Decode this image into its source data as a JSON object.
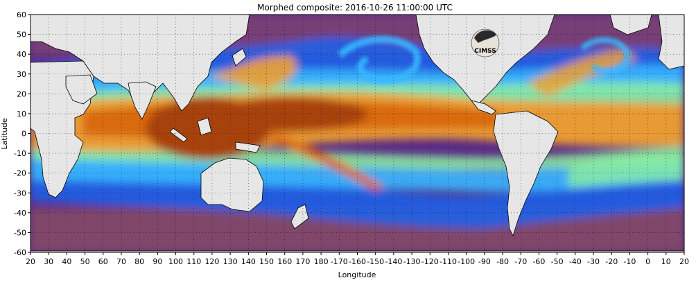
{
  "map": {
    "title": "Morphed composite: 2016-10-26 11:00:00 UTC",
    "xlabel": "Longitude",
    "ylabel": "Latitude",
    "x_ticks": [
      "20",
      "30",
      "40",
      "50",
      "60",
      "70",
      "80",
      "90",
      "100",
      "110",
      "120",
      "130",
      "140",
      "150",
      "160",
      "170",
      "180",
      "-170",
      "-160",
      "-150",
      "-140",
      "-130",
      "-120",
      "-110",
      "-100",
      "-90",
      "-80",
      "-70",
      "-60",
      "-50",
      "-40",
      "-30",
      "-20",
      "-10",
      "0",
      "10",
      "20"
    ],
    "y_ticks": [
      "60",
      "50",
      "40",
      "30",
      "20",
      "10",
      "0",
      "-10",
      "-20",
      "-30",
      "-40",
      "-50",
      "-60"
    ],
    "logo_text": "CIMSS",
    "colors": {
      "land": "#e6e6e6",
      "dry": "#5a2a86",
      "dry_alt": "#8a4f62",
      "low": "#1e60e8",
      "mid_low": "#38b8ff",
      "mid": "#8cf0a0",
      "mid_high": "#f0a030",
      "high": "#d96a10",
      "very_high": "#a8420c",
      "frame": "#000000"
    }
  }
}
